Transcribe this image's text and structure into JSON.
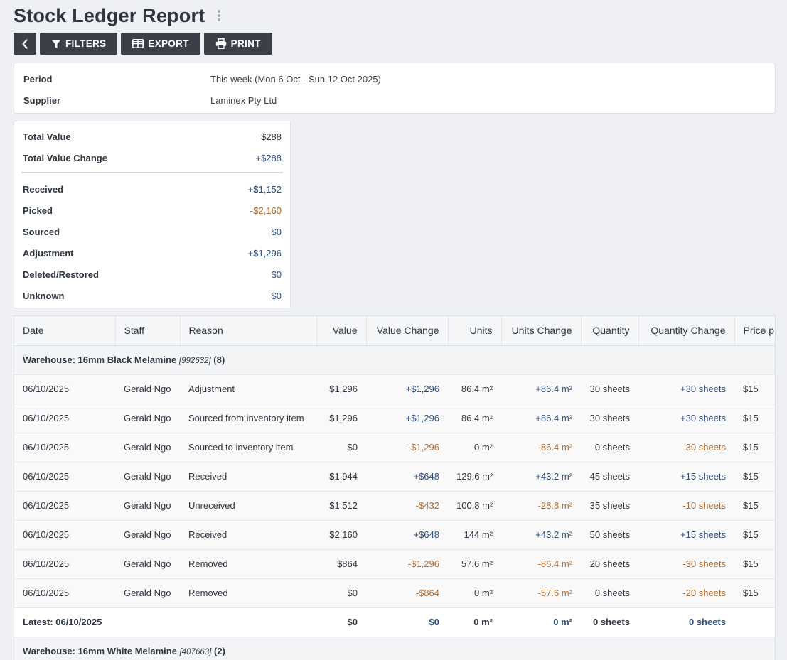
{
  "page": {
    "title": "Stock Ledger Report"
  },
  "toolbar": {
    "filters_label": "FILTERS",
    "export_label": "EXPORT",
    "print_label": "PRINT"
  },
  "info": {
    "period_label": "Period",
    "period_value": "This week (Mon 6 Oct - Sun 12 Oct 2025)",
    "supplier_label": "Supplier",
    "supplier_value": "Laminex Pty Ltd"
  },
  "summary": {
    "total_value_label": "Total Value",
    "total_value": "$288",
    "total_value_change_label": "Total Value Change",
    "total_value_change": "+$288",
    "items": [
      {
        "label": "Received",
        "value": "+$1,152",
        "tone": "pos"
      },
      {
        "label": "Picked",
        "value": "-$2,160",
        "tone": "neg"
      },
      {
        "label": "Sourced",
        "value": "$0",
        "tone": "zero"
      },
      {
        "label": "Adjustment",
        "value": "+$1,296",
        "tone": "pos"
      },
      {
        "label": "Deleted/Restored",
        "value": "$0",
        "tone": "zero"
      },
      {
        "label": "Unknown",
        "value": "$0",
        "tone": "zero"
      }
    ]
  },
  "table": {
    "columns": [
      "Date",
      "Staff",
      "Reason",
      "Value",
      "Value Change",
      "Units",
      "Units Change",
      "Quantity",
      "Quantity Change",
      "Price p"
    ],
    "group1": {
      "name": "Warehouse: 16mm Black Melamine",
      "code": "[992632]",
      "count": "(8)"
    },
    "rows": [
      {
        "date": "06/10/2025",
        "staff": "Gerald Ngo",
        "reason": "Adjustment",
        "value": "$1,296",
        "value_change": "+$1,296",
        "units": "86.4 m²",
        "units_change": "+86.4 m²",
        "quantity": "30 sheets",
        "quantity_change": "+30 sheets",
        "price": "$15",
        "tone": "pos"
      },
      {
        "date": "06/10/2025",
        "staff": "Gerald Ngo",
        "reason": "Sourced from inventory item",
        "value": "$1,296",
        "value_change": "+$1,296",
        "units": "86.4 m²",
        "units_change": "+86.4 m²",
        "quantity": "30 sheets",
        "quantity_change": "+30 sheets",
        "price": "$15",
        "tone": "pos"
      },
      {
        "date": "06/10/2025",
        "staff": "Gerald Ngo",
        "reason": "Sourced to inventory item",
        "value": "$0",
        "value_change": "-$1,296",
        "units": "0 m²",
        "units_change": "-86.4 m²",
        "quantity": "0 sheets",
        "quantity_change": "-30 sheets",
        "price": "$15",
        "tone": "neg"
      },
      {
        "date": "06/10/2025",
        "staff": "Gerald Ngo",
        "reason": "Received",
        "value": "$1,944",
        "value_change": "+$648",
        "units": "129.6 m²",
        "units_change": "+43.2 m²",
        "quantity": "45 sheets",
        "quantity_change": "+15 sheets",
        "price": "$15",
        "tone": "pos"
      },
      {
        "date": "06/10/2025",
        "staff": "Gerald Ngo",
        "reason": "Unreceived",
        "value": "$1,512",
        "value_change": "-$432",
        "units": "100.8 m²",
        "units_change": "-28.8 m²",
        "quantity": "35 sheets",
        "quantity_change": "-10 sheets",
        "price": "$15",
        "tone": "neg"
      },
      {
        "date": "06/10/2025",
        "staff": "Gerald Ngo",
        "reason": "Received",
        "value": "$2,160",
        "value_change": "+$648",
        "units": "144 m²",
        "units_change": "+43.2 m²",
        "quantity": "50 sheets",
        "quantity_change": "+15 sheets",
        "price": "$15",
        "tone": "pos"
      },
      {
        "date": "06/10/2025",
        "staff": "Gerald Ngo",
        "reason": "Removed",
        "value": "$864",
        "value_change": "-$1,296",
        "units": "57.6 m²",
        "units_change": "-86.4 m²",
        "quantity": "20 sheets",
        "quantity_change": "-30 sheets",
        "price": "$15",
        "tone": "neg"
      },
      {
        "date": "06/10/2025",
        "staff": "Gerald Ngo",
        "reason": "Removed",
        "value": "$0",
        "value_change": "-$864",
        "units": "0 m²",
        "units_change": "-57.6 m²",
        "quantity": "0 sheets",
        "quantity_change": "-20 sheets",
        "price": "$15",
        "tone": "neg"
      }
    ],
    "total": {
      "label": "Latest: 06/10/2025",
      "value": "$0",
      "value_change": "$0",
      "units": "0 m²",
      "units_change": "0 m²",
      "quantity": "0 sheets",
      "quantity_change": "0 sheets"
    },
    "group2": {
      "name": "Warehouse: 16mm White Melamine",
      "code": "[407663]",
      "count": "(2)"
    }
  }
}
